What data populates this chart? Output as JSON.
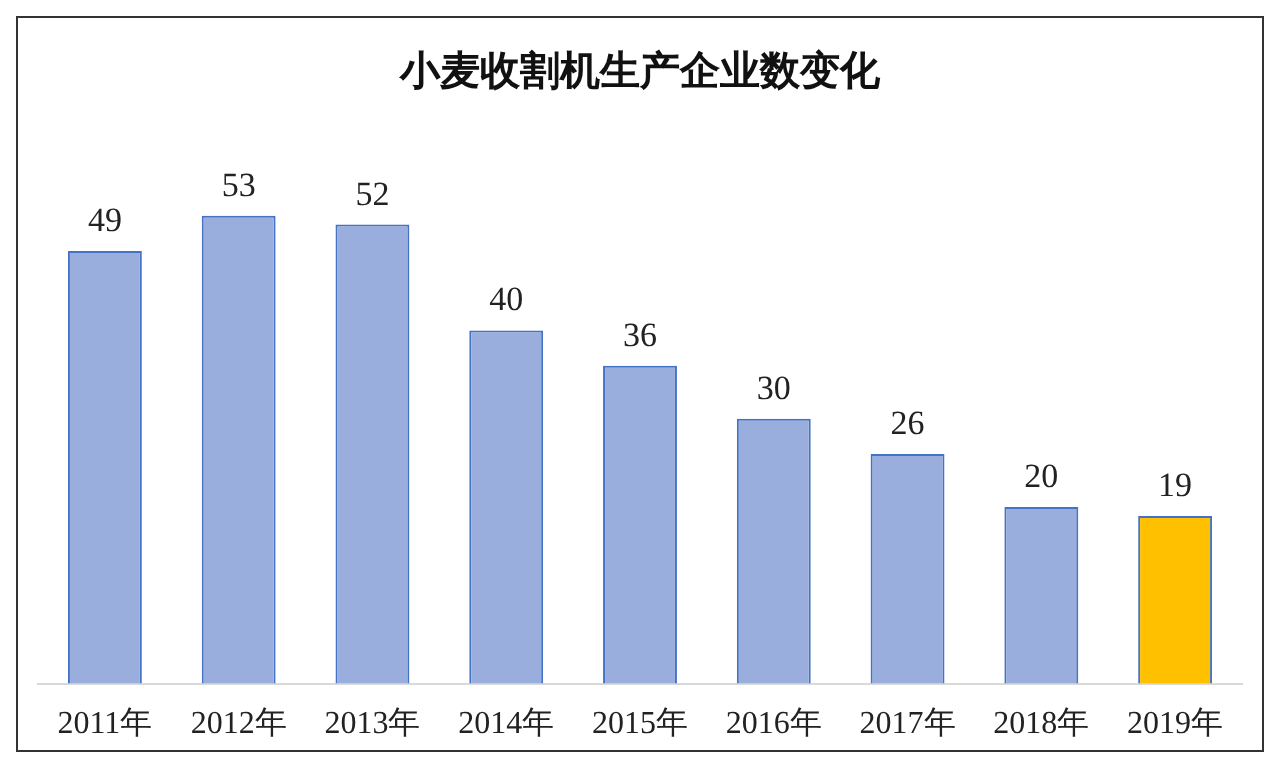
{
  "chart_data": {
    "type": "bar",
    "title": "小麦收割机生产企业数变化",
    "categories": [
      "2011年",
      "2012年",
      "2013年",
      "2014年",
      "2015年",
      "2016年",
      "2017年",
      "2018年",
      "2019年"
    ],
    "values": [
      49,
      53,
      52,
      40,
      36,
      30,
      26,
      20,
      19
    ],
    "colors": [
      "#9aaedd",
      "#9aaedd",
      "#9aaedd",
      "#9aaedd",
      "#9aaedd",
      "#9aaedd",
      "#9aaedd",
      "#9aaedd",
      "#ffc000"
    ],
    "data_labels": true,
    "grid": false,
    "legend": false,
    "tick_labels": "x"
  }
}
